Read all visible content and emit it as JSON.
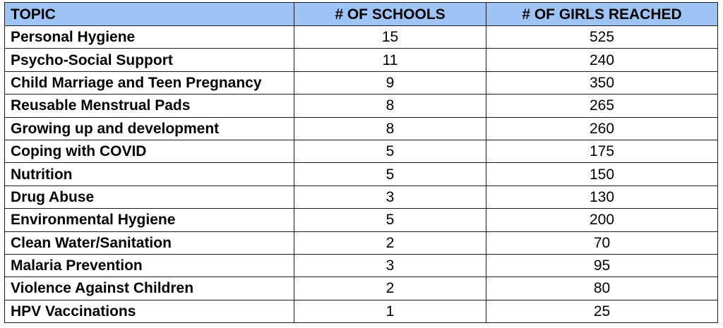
{
  "table": {
    "headers": [
      "TOPIC",
      "# OF SCHOOLS",
      "# OF GIRLS REACHED"
    ],
    "header_color": "#9ec3f5",
    "rows": [
      [
        "Personal Hygiene",
        "15",
        "525"
      ],
      [
        "Psycho-Social Support",
        "11",
        "240"
      ],
      [
        "Child Marriage and Teen Pregnancy",
        "9",
        "350"
      ],
      [
        "Reusable Menstrual Pads",
        "8",
        "265"
      ],
      [
        "Growing up and development",
        "8",
        "260"
      ],
      [
        "Coping with COVID",
        "5",
        "175"
      ],
      [
        "Nutrition",
        "5",
        "150"
      ],
      [
        "Drug Abuse",
        "3",
        "130"
      ],
      [
        "Environmental Hygiene",
        "5",
        "200"
      ],
      [
        "Clean Water/Sanitation",
        "2",
        "70"
      ],
      [
        "Malaria Prevention",
        "3",
        "95"
      ],
      [
        "Violence Against Children",
        "2",
        "80"
      ],
      [
        "HPV Vaccinations",
        "1",
        "25"
      ]
    ]
  }
}
